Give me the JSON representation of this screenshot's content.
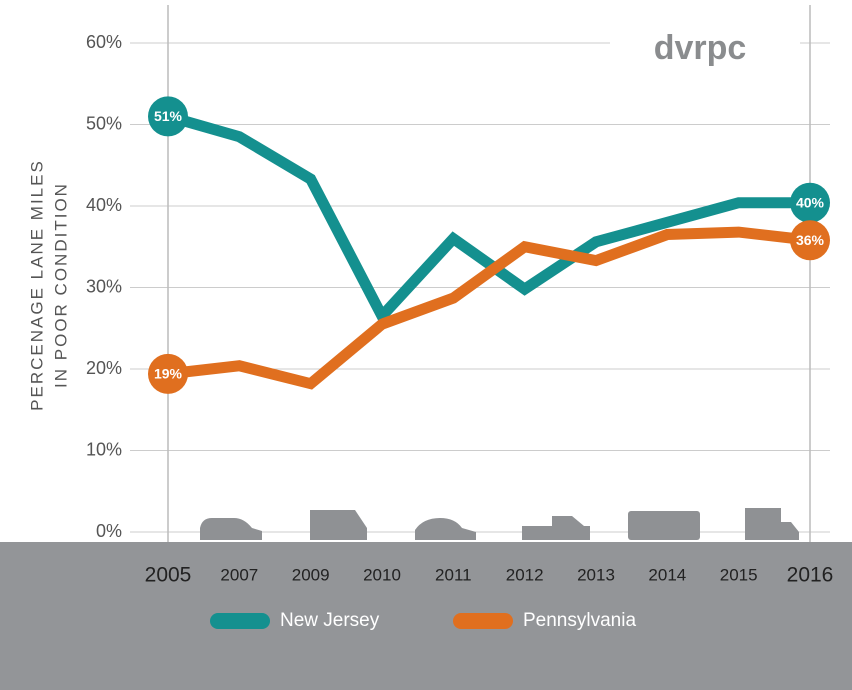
{
  "chart_data": {
    "type": "line",
    "y_axis_label": [
      "PERCENAGE LANE MILES",
      "IN POOR CONDITION"
    ],
    "logo": "dvrpc",
    "categories": [
      "2005",
      "2007",
      "2009",
      "2010",
      "2011",
      "2012",
      "2013",
      "2014",
      "2015",
      "2016"
    ],
    "series": [
      {
        "name": "New Jersey",
        "color": "#14908f",
        "values": [
          51,
          48.5,
          43.3,
          26.5,
          36,
          29.8,
          35.6,
          38,
          40.4,
          40.4
        ],
        "value_labels": [
          "51%",
          null,
          null,
          null,
          null,
          null,
          null,
          null,
          null,
          "40%"
        ]
      },
      {
        "name": "Pennsylvania",
        "color": "#e06f1f",
        "values": [
          19.4,
          20.4,
          18.2,
          25.5,
          28.7,
          35,
          33.3,
          36.5,
          36.8,
          35.8
        ],
        "value_labels": [
          "19%",
          null,
          null,
          null,
          null,
          null,
          null,
          null,
          null,
          "36%"
        ]
      }
    ],
    "ylim": [
      0,
      60
    ],
    "yticks": [
      {
        "value": 0,
        "label": "0%"
      },
      {
        "value": 10,
        "label": "10%"
      },
      {
        "value": 20,
        "label": "20%"
      },
      {
        "value": 30,
        "label": "30%"
      },
      {
        "value": 40,
        "label": "40%"
      },
      {
        "value": 50,
        "label": "50%"
      },
      {
        "value": 60,
        "label": "60%"
      }
    ],
    "grid": true
  }
}
